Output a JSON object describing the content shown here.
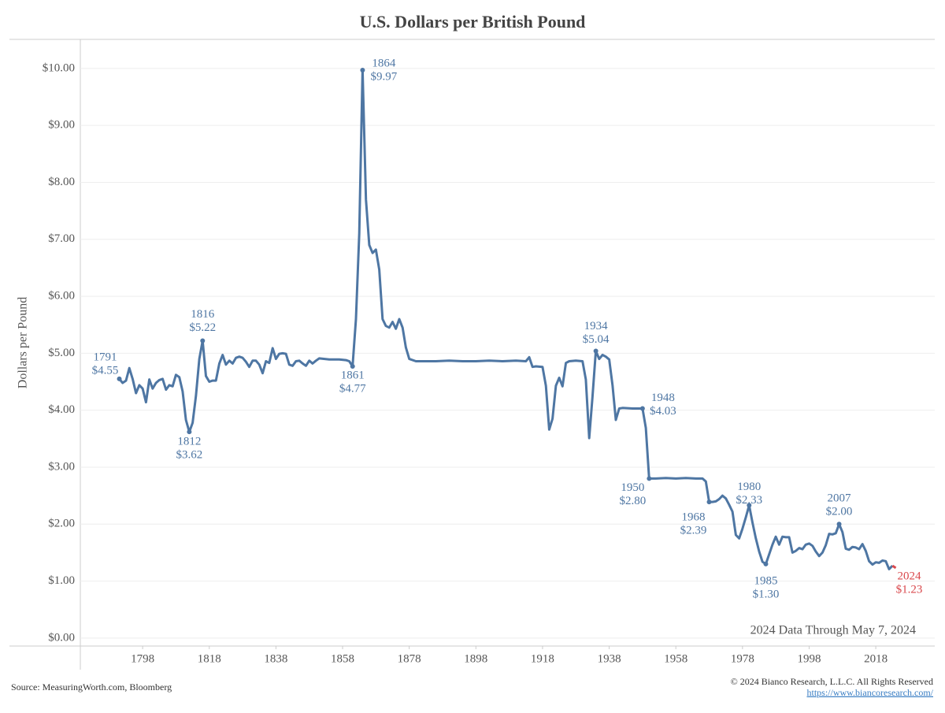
{
  "chart_data": {
    "type": "line",
    "title": "U.S. Dollars per British Pound",
    "y_label": "Dollars per Pound",
    "note": "2024 Data Through May 7, 2024",
    "source": "Source: MeasuringWorth.com, Bloomberg",
    "copyright": "© 2024 Bianco Research, L.L.C. All Rights Reserved",
    "url": "https://www.biancoresearch.com/",
    "xlim": [
      1779.3,
      2035.7
    ],
    "ylim": [
      -0.14,
      10.51
    ],
    "xticks": [
      1798,
      1818,
      1838,
      1858,
      1878,
      1898,
      1918,
      1938,
      1958,
      1978,
      1998,
      2018
    ],
    "yticks": [
      {
        "value": 0,
        "label": "$0.00"
      },
      {
        "value": 1,
        "label": "$1.00"
      },
      {
        "value": 2,
        "label": "$2.00"
      },
      {
        "value": 3,
        "label": "$3.00"
      },
      {
        "value": 4,
        "label": "$4.00"
      },
      {
        "value": 5,
        "label": "$5.00"
      },
      {
        "value": 6,
        "label": "$6.00"
      },
      {
        "value": 7,
        "label": "$7.00"
      },
      {
        "value": 8,
        "label": "$8.00"
      },
      {
        "value": 9,
        "label": "$9.00"
      },
      {
        "value": 10,
        "label": "$10.00"
      }
    ],
    "grid": true,
    "series": [
      {
        "color": "#4e76a3",
        "x": [
          1791,
          1792,
          1793,
          1794,
          1795,
          1796,
          1797,
          1798,
          1799,
          1800,
          1801,
          1802,
          1803,
          1804,
          1805,
          1806,
          1807,
          1808,
          1809,
          1810,
          1811,
          1812,
          1813,
          1814,
          1815,
          1816,
          1817,
          1818,
          1819,
          1820,
          1821,
          1822,
          1823,
          1824,
          1825,
          1826,
          1827,
          1828,
          1829,
          1830,
          1831,
          1832,
          1833,
          1834,
          1835,
          1836,
          1837,
          1838,
          1839,
          1840,
          1841,
          1842,
          1843,
          1844,
          1845,
          1846,
          1847,
          1848,
          1849,
          1850,
          1851,
          1854,
          1857,
          1859,
          1860,
          1861,
          1862,
          1863,
          1864,
          1865,
          1866,
          1867,
          1868,
          1869,
          1870,
          1871,
          1872,
          1873,
          1874,
          1875,
          1876,
          1877,
          1878,
          1880,
          1882,
          1884,
          1886,
          1890,
          1894,
          1898,
          1902,
          1906,
          1910,
          1913,
          1914,
          1915,
          1916,
          1918,
          1919,
          1920,
          1921,
          1922,
          1923,
          1924,
          1925,
          1926,
          1928,
          1930,
          1931,
          1932,
          1933,
          1934,
          1935,
          1936,
          1937,
          1938,
          1939,
          1940,
          1941,
          1942,
          1945,
          1948,
          1949,
          1950,
          1952,
          1955,
          1958,
          1961,
          1964,
          1966,
          1967,
          1968,
          1969,
          1970,
          1971,
          1972,
          1973,
          1974,
          1975,
          1976,
          1977,
          1978,
          1979,
          1980,
          1981,
          1982,
          1983,
          1984,
          1985,
          1986,
          1987,
          1988,
          1989,
          1990,
          1991,
          1992,
          1993,
          1994,
          1995,
          1996,
          1997,
          1998,
          1999,
          2000,
          2001,
          2002,
          2003,
          2004,
          2005,
          2006,
          2007,
          2008,
          2009,
          2010,
          2011,
          2012,
          2013,
          2014,
          2015,
          2016,
          2017,
          2018,
          2019,
          2020,
          2021,
          2022,
          2023
        ],
        "values": [
          4.55,
          4.48,
          4.52,
          4.74,
          4.55,
          4.3,
          4.44,
          4.38,
          4.14,
          4.54,
          4.38,
          4.48,
          4.53,
          4.55,
          4.36,
          4.44,
          4.42,
          4.62,
          4.58,
          4.33,
          3.83,
          3.62,
          3.78,
          4.25,
          4.9,
          5.22,
          4.6,
          4.5,
          4.52,
          4.52,
          4.82,
          4.97,
          4.8,
          4.87,
          4.82,
          4.92,
          4.94,
          4.92,
          4.85,
          4.76,
          4.87,
          4.87,
          4.8,
          4.65,
          4.86,
          4.83,
          5.09,
          4.9,
          4.99,
          5.0,
          4.99,
          4.8,
          4.78,
          4.86,
          4.87,
          4.82,
          4.78,
          4.87,
          4.82,
          4.87,
          4.91,
          4.89,
          4.89,
          4.88,
          4.86,
          4.77,
          5.6,
          7.1,
          9.97,
          7.7,
          6.9,
          6.76,
          6.82,
          6.47,
          5.6,
          5.48,
          5.45,
          5.55,
          5.43,
          5.6,
          5.45,
          5.1,
          4.9,
          4.86,
          4.86,
          4.86,
          4.86,
          4.87,
          4.86,
          4.86,
          4.87,
          4.86,
          4.87,
          4.86,
          4.93,
          4.76,
          4.77,
          4.76,
          4.43,
          3.66,
          3.85,
          4.43,
          4.57,
          4.42,
          4.83,
          4.86,
          4.87,
          4.86,
          4.54,
          3.51,
          4.24,
          5.04,
          4.9,
          4.97,
          4.94,
          4.89,
          4.44,
          3.83,
          4.03,
          4.04,
          4.03,
          4.03,
          3.69,
          2.8,
          2.8,
          2.81,
          2.8,
          2.81,
          2.8,
          2.8,
          2.75,
          2.39,
          2.39,
          2.4,
          2.44,
          2.5,
          2.45,
          2.34,
          2.22,
          1.81,
          1.75,
          1.92,
          2.12,
          2.33,
          2.03,
          1.75,
          1.52,
          1.34,
          1.3,
          1.47,
          1.64,
          1.78,
          1.64,
          1.78,
          1.77,
          1.77,
          1.5,
          1.53,
          1.58,
          1.56,
          1.64,
          1.66,
          1.62,
          1.52,
          1.44,
          1.5,
          1.63,
          1.83,
          1.82,
          1.84,
          2.0,
          1.86,
          1.57,
          1.55,
          1.6,
          1.59,
          1.56,
          1.65,
          1.53,
          1.35,
          1.29,
          1.33,
          1.32,
          1.36,
          1.35,
          1.21,
          1.27
        ]
      },
      {
        "color": "#d9474b",
        "x": [
          2023,
          2024
        ],
        "values": [
          1.27,
          1.23
        ]
      }
    ],
    "annotations": [
      {
        "x": 1791,
        "y": 4.55,
        "label": "$4.55",
        "color": "#4e76a3"
      },
      {
        "x": 1812,
        "y": 3.62,
        "label": "$3.62",
        "color": "#4e76a3"
      },
      {
        "x": 1816,
        "y": 5.22,
        "label": "$5.22",
        "color": "#4e76a3"
      },
      {
        "x": 1861,
        "y": 4.77,
        "label": "$4.77",
        "color": "#4e76a3"
      },
      {
        "x": 1864,
        "y": 9.97,
        "label": "$9.97",
        "color": "#4e76a3"
      },
      {
        "x": 1934,
        "y": 5.04,
        "label": "$5.04",
        "color": "#4e76a3"
      },
      {
        "x": 1948,
        "y": 4.03,
        "label": "$4.03",
        "color": "#4e76a3"
      },
      {
        "x": 1950,
        "y": 2.8,
        "label": "$2.80",
        "color": "#4e76a3"
      },
      {
        "x": 1968,
        "y": 2.39,
        "label": "$2.39",
        "color": "#4e76a3"
      },
      {
        "x": 1980,
        "y": 2.33,
        "label": "$2.33",
        "color": "#4e76a3"
      },
      {
        "x": 1985,
        "y": 1.3,
        "label": "$1.30",
        "color": "#4e76a3"
      },
      {
        "x": 2007,
        "y": 2.0,
        "label": "$2.00",
        "color": "#4e76a3"
      },
      {
        "x": 2024,
        "y": 1.23,
        "label": "$1.23",
        "color": "#d9474b"
      }
    ]
  }
}
